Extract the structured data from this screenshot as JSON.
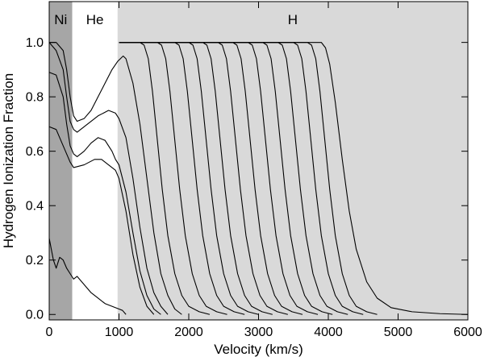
{
  "chart_data": {
    "type": "line",
    "xlabel": "Velocity (km/s)",
    "ylabel": "Hydrogen Ionization Fraction",
    "xlim": [
      0,
      6000
    ],
    "ylim": [
      -0.02,
      1.15
    ],
    "x_ticks": [
      0,
      1000,
      2000,
      3000,
      4000,
      5000,
      6000
    ],
    "x_tick_labels": [
      "0",
      "1000",
      "2000",
      "3000",
      "4000",
      "5000",
      "6000"
    ],
    "y_ticks": [
      0.0,
      0.2,
      0.4,
      0.6,
      0.8,
      1.0
    ],
    "y_tick_labels": [
      "0.0",
      "0.2",
      "0.4",
      "0.6",
      "0.8",
      "1.0"
    ],
    "regions": [
      {
        "label": "Ni",
        "x_start": 0,
        "x_end": 330,
        "color": "#a6a6a6"
      },
      {
        "label": "He",
        "x_start": 330,
        "x_end": 980,
        "color": "#ffffff"
      },
      {
        "label": "H",
        "x_start": 980,
        "x_end": 6000,
        "color": "#d9d9d9"
      }
    ],
    "series": [
      {
        "points": [
          [
            0,
            1.0
          ],
          [
            100,
            1.0
          ],
          [
            200,
            0.97
          ],
          [
            250,
            0.9
          ],
          [
            300,
            0.8
          ],
          [
            350,
            0.73
          ],
          [
            400,
            0.71
          ],
          [
            500,
            0.72
          ],
          [
            600,
            0.75
          ],
          [
            700,
            0.8
          ],
          [
            800,
            0.85
          ],
          [
            900,
            0.9
          ],
          [
            980,
            0.93
          ],
          [
            1060,
            0.95
          ],
          [
            1100,
            0.94
          ],
          [
            1200,
            0.85
          ],
          [
            1300,
            0.7
          ],
          [
            1400,
            0.5
          ],
          [
            1500,
            0.3
          ],
          [
            1600,
            0.15
          ],
          [
            1700,
            0.07
          ],
          [
            1800,
            0.02
          ],
          [
            1900,
            0.0
          ]
        ]
      },
      {
        "points": [
          [
            0,
            1.0
          ],
          [
            100,
            0.97
          ],
          [
            200,
            0.9
          ],
          [
            250,
            0.8
          ],
          [
            300,
            0.71
          ],
          [
            350,
            0.68
          ],
          [
            400,
            0.67
          ],
          [
            500,
            0.69
          ],
          [
            700,
            0.73
          ],
          [
            850,
            0.75
          ],
          [
            950,
            0.74
          ],
          [
            1000,
            0.72
          ],
          [
            1100,
            0.65
          ],
          [
            1200,
            0.5
          ],
          [
            1300,
            0.32
          ],
          [
            1400,
            0.17
          ],
          [
            1500,
            0.08
          ],
          [
            1600,
            0.03
          ],
          [
            1700,
            0.0
          ]
        ]
      },
      {
        "points": [
          [
            0,
            0.89
          ],
          [
            100,
            0.88
          ],
          [
            200,
            0.8
          ],
          [
            250,
            0.7
          ],
          [
            300,
            0.62
          ],
          [
            350,
            0.59
          ],
          [
            400,
            0.58
          ],
          [
            500,
            0.6
          ],
          [
            600,
            0.63
          ],
          [
            700,
            0.65
          ],
          [
            800,
            0.64
          ],
          [
            900,
            0.6
          ],
          [
            950,
            0.57
          ],
          [
            1000,
            0.55
          ],
          [
            1100,
            0.45
          ],
          [
            1200,
            0.3
          ],
          [
            1300,
            0.16
          ],
          [
            1400,
            0.07
          ],
          [
            1500,
            0.02
          ],
          [
            1600,
            0.0
          ]
        ]
      },
      {
        "points": [
          [
            0,
            0.69
          ],
          [
            100,
            0.68
          ],
          [
            200,
            0.62
          ],
          [
            300,
            0.56
          ],
          [
            350,
            0.54
          ],
          [
            500,
            0.55
          ],
          [
            650,
            0.57
          ],
          [
            750,
            0.57
          ],
          [
            850,
            0.55
          ],
          [
            950,
            0.53
          ],
          [
            1000,
            0.5
          ],
          [
            1100,
            0.38
          ],
          [
            1200,
            0.22
          ],
          [
            1300,
            0.1
          ],
          [
            1400,
            0.03
          ],
          [
            1500,
            0.0
          ]
        ]
      },
      {
        "points": [
          [
            0,
            0.28
          ],
          [
            60,
            0.2
          ],
          [
            100,
            0.17
          ],
          [
            150,
            0.21
          ],
          [
            200,
            0.2
          ],
          [
            250,
            0.17
          ],
          [
            300,
            0.15
          ],
          [
            350,
            0.13
          ],
          [
            400,
            0.14
          ],
          [
            500,
            0.11
          ],
          [
            600,
            0.08
          ],
          [
            700,
            0.06
          ],
          [
            800,
            0.04
          ],
          [
            900,
            0.03
          ],
          [
            1000,
            0.02
          ],
          [
            1050,
            0.015
          ],
          [
            1100,
            0.0
          ]
        ]
      },
      {
        "points": [
          [
            1000,
            1.0
          ],
          [
            1300,
            1.0
          ],
          [
            1360,
            0.99
          ],
          [
            1420,
            0.94
          ],
          [
            1480,
            0.82
          ],
          [
            1550,
            0.64
          ],
          [
            1620,
            0.46
          ],
          [
            1700,
            0.29
          ],
          [
            1800,
            0.15
          ],
          [
            1900,
            0.07
          ],
          [
            2000,
            0.03
          ],
          [
            2150,
            0.01
          ],
          [
            2300,
            0.0
          ]
        ]
      },
      {
        "points": [
          [
            1000,
            1.0
          ],
          [
            1550,
            1.0
          ],
          [
            1610,
            0.99
          ],
          [
            1670,
            0.94
          ],
          [
            1730,
            0.82
          ],
          [
            1800,
            0.64
          ],
          [
            1870,
            0.46
          ],
          [
            1950,
            0.29
          ],
          [
            2050,
            0.15
          ],
          [
            2150,
            0.07
          ],
          [
            2250,
            0.03
          ],
          [
            2400,
            0.01
          ],
          [
            2550,
            0.0
          ]
        ]
      },
      {
        "points": [
          [
            1000,
            1.0
          ],
          [
            1800,
            1.0
          ],
          [
            1860,
            0.99
          ],
          [
            1920,
            0.94
          ],
          [
            1980,
            0.82
          ],
          [
            2050,
            0.64
          ],
          [
            2120,
            0.46
          ],
          [
            2200,
            0.29
          ],
          [
            2300,
            0.15
          ],
          [
            2400,
            0.07
          ],
          [
            2500,
            0.03
          ],
          [
            2650,
            0.01
          ],
          [
            2800,
            0.0
          ]
        ]
      },
      {
        "points": [
          [
            1000,
            1.0
          ],
          [
            2000,
            1.0
          ],
          [
            2060,
            0.99
          ],
          [
            2120,
            0.94
          ],
          [
            2180,
            0.82
          ],
          [
            2250,
            0.64
          ],
          [
            2320,
            0.46
          ],
          [
            2400,
            0.29
          ],
          [
            2500,
            0.15
          ],
          [
            2600,
            0.07
          ],
          [
            2700,
            0.03
          ],
          [
            2850,
            0.01
          ],
          [
            3000,
            0.0
          ]
        ]
      },
      {
        "points": [
          [
            1000,
            1.0
          ],
          [
            2200,
            1.0
          ],
          [
            2260,
            0.99
          ],
          [
            2320,
            0.94
          ],
          [
            2380,
            0.82
          ],
          [
            2450,
            0.64
          ],
          [
            2520,
            0.46
          ],
          [
            2600,
            0.29
          ],
          [
            2700,
            0.15
          ],
          [
            2800,
            0.07
          ],
          [
            2900,
            0.03
          ],
          [
            3050,
            0.01
          ],
          [
            3200,
            0.0
          ]
        ]
      },
      {
        "points": [
          [
            1000,
            1.0
          ],
          [
            2420,
            1.0
          ],
          [
            2480,
            0.99
          ],
          [
            2540,
            0.94
          ],
          [
            2600,
            0.82
          ],
          [
            2670,
            0.64
          ],
          [
            2740,
            0.46
          ],
          [
            2820,
            0.29
          ],
          [
            2920,
            0.15
          ],
          [
            3020,
            0.07
          ],
          [
            3120,
            0.03
          ],
          [
            3270,
            0.01
          ],
          [
            3420,
            0.0
          ]
        ]
      },
      {
        "points": [
          [
            1000,
            1.0
          ],
          [
            2630,
            1.0
          ],
          [
            2690,
            0.99
          ],
          [
            2750,
            0.94
          ],
          [
            2810,
            0.82
          ],
          [
            2880,
            0.64
          ],
          [
            2950,
            0.46
          ],
          [
            3030,
            0.29
          ],
          [
            3130,
            0.15
          ],
          [
            3230,
            0.07
          ],
          [
            3330,
            0.03
          ],
          [
            3480,
            0.01
          ],
          [
            3630,
            0.0
          ]
        ]
      },
      {
        "points": [
          [
            1000,
            1.0
          ],
          [
            2850,
            1.0
          ],
          [
            2910,
            0.99
          ],
          [
            2970,
            0.94
          ],
          [
            3030,
            0.82
          ],
          [
            3100,
            0.64
          ],
          [
            3170,
            0.46
          ],
          [
            3250,
            0.29
          ],
          [
            3350,
            0.15
          ],
          [
            3450,
            0.07
          ],
          [
            3550,
            0.03
          ],
          [
            3700,
            0.01
          ],
          [
            3850,
            0.0
          ]
        ]
      },
      {
        "points": [
          [
            1000,
            1.0
          ],
          [
            3060,
            1.0
          ],
          [
            3120,
            0.99
          ],
          [
            3180,
            0.94
          ],
          [
            3240,
            0.82
          ],
          [
            3310,
            0.64
          ],
          [
            3380,
            0.46
          ],
          [
            3460,
            0.29
          ],
          [
            3560,
            0.15
          ],
          [
            3660,
            0.07
          ],
          [
            3760,
            0.03
          ],
          [
            3910,
            0.01
          ],
          [
            4060,
            0.0
          ]
        ]
      },
      {
        "points": [
          [
            1000,
            1.0
          ],
          [
            3280,
            1.0
          ],
          [
            3340,
            0.99
          ],
          [
            3400,
            0.94
          ],
          [
            3460,
            0.82
          ],
          [
            3530,
            0.64
          ],
          [
            3600,
            0.46
          ],
          [
            3680,
            0.29
          ],
          [
            3780,
            0.15
          ],
          [
            3880,
            0.07
          ],
          [
            3980,
            0.03
          ],
          [
            4130,
            0.01
          ],
          [
            4280,
            0.0
          ]
        ]
      },
      {
        "points": [
          [
            1000,
            1.0
          ],
          [
            3500,
            1.0
          ],
          [
            3560,
            0.99
          ],
          [
            3620,
            0.94
          ],
          [
            3680,
            0.82
          ],
          [
            3750,
            0.64
          ],
          [
            3820,
            0.46
          ],
          [
            3900,
            0.29
          ],
          [
            4000,
            0.15
          ],
          [
            4100,
            0.07
          ],
          [
            4200,
            0.03
          ],
          [
            4350,
            0.01
          ],
          [
            4500,
            0.0
          ]
        ]
      },
      {
        "points": [
          [
            1000,
            1.0
          ],
          [
            3700,
            1.0
          ],
          [
            3760,
            0.99
          ],
          [
            3820,
            0.94
          ],
          [
            3880,
            0.82
          ],
          [
            3950,
            0.64
          ],
          [
            4020,
            0.46
          ],
          [
            4100,
            0.29
          ],
          [
            4200,
            0.15
          ],
          [
            4300,
            0.07
          ],
          [
            4400,
            0.03
          ],
          [
            4550,
            0.01
          ],
          [
            4700,
            0.0
          ]
        ]
      },
      {
        "points": [
          [
            1000,
            1.0
          ],
          [
            3900,
            1.0
          ],
          [
            3960,
            0.98
          ],
          [
            4020,
            0.92
          ],
          [
            4100,
            0.78
          ],
          [
            4200,
            0.57
          ],
          [
            4300,
            0.38
          ],
          [
            4400,
            0.24
          ],
          [
            4550,
            0.12
          ],
          [
            4700,
            0.06
          ],
          [
            4900,
            0.025
          ],
          [
            5200,
            0.01
          ],
          [
            5600,
            0.003
          ],
          [
            6000,
            0.0
          ]
        ]
      }
    ]
  }
}
